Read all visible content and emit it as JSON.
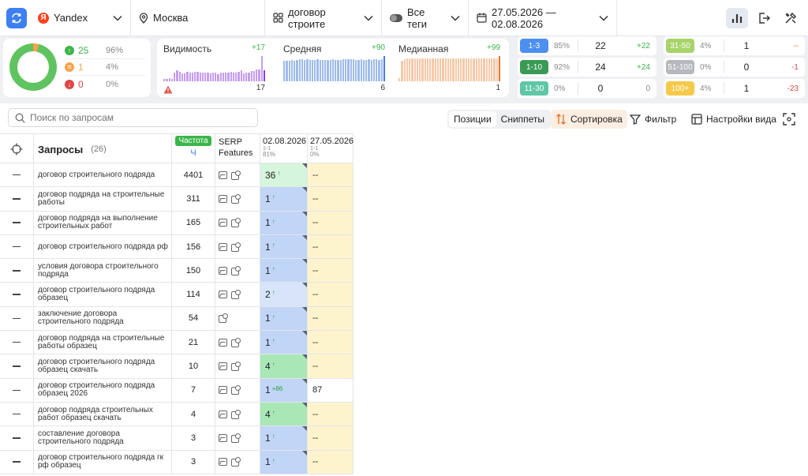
{
  "topbar": {
    "engine": "Yandex",
    "region": "Москва",
    "project": "договор строите",
    "tags": "Все теги",
    "date_range": "27.05.2026 — 02.08.2026"
  },
  "summary": {
    "up": {
      "count": "25",
      "pct": "96%"
    },
    "same": {
      "count": "1",
      "pct": "4%"
    },
    "down": {
      "count": "0",
      "pct": "0%"
    }
  },
  "metrics": [
    {
      "title": "Видимость",
      "delta": "+17",
      "value": "17",
      "color": "#c79df0",
      "bars": [
        5,
        6,
        7,
        5,
        22,
        28,
        24,
        20,
        20,
        24,
        22,
        22,
        24,
        24,
        22,
        22,
        22,
        22,
        20,
        22,
        22,
        18,
        22,
        22,
        22,
        22,
        24,
        22,
        22,
        24,
        28,
        20,
        22,
        22,
        26,
        26,
        30,
        30,
        62,
        28
      ]
    },
    {
      "title": "Средняя",
      "delta": "+90",
      "value": "6",
      "color": "#9fbcea",
      "bars": [
        80,
        82,
        80,
        84,
        82,
        84,
        86,
        86,
        84,
        86,
        84,
        84,
        84,
        86,
        84,
        84,
        84,
        84,
        84,
        86,
        84,
        84,
        84,
        86,
        86,
        88,
        86,
        86,
        84,
        84,
        86,
        84,
        84,
        86,
        84,
        86,
        86,
        84,
        88,
        100
      ]
    },
    {
      "title": "Медианная",
      "delta": "+99",
      "value": "1",
      "color": "#f7c8a8",
      "bars": [
        12,
        80,
        88,
        90,
        90,
        90,
        92,
        90,
        92,
        92,
        90,
        90,
        92,
        92,
        90,
        92,
        92,
        92,
        92,
        90,
        90,
        92,
        92,
        92,
        90,
        90,
        92,
        92,
        92,
        92,
        90,
        92,
        90,
        92,
        92,
        92,
        92,
        92,
        92,
        100
      ]
    }
  ],
  "ranges_left": [
    {
      "label": "1-3",
      "pct": "85%",
      "count": "22",
      "delta": "+22",
      "chip_color": "#4c8ff0",
      "delta_color": "#3bb54a"
    },
    {
      "label": "1-10",
      "pct": "92%",
      "count": "24",
      "delta": "+24",
      "chip_color": "#3a9a55",
      "delta_color": "#3bb54a"
    },
    {
      "label": "11-30",
      "pct": "0%",
      "count": "0",
      "delta": "0",
      "chip_color": "#5fc6a6",
      "delta_color": "#888888"
    }
  ],
  "ranges_right": [
    {
      "label": "31-50",
      "pct": "4%",
      "count": "1",
      "delta": "--",
      "chip_color": "#a6d46a",
      "delta_color": "#e8732e"
    },
    {
      "label": "51-100",
      "pct": "0%",
      "count": "0",
      "delta": "-1",
      "chip_color": "#b5b8bd",
      "delta_color": "#e04646"
    },
    {
      "label": "100+",
      "pct": "4%",
      "count": "1",
      "delta": "-23",
      "chip_color": "#f7c94a",
      "delta_color": "#e04646"
    }
  ],
  "toolbar": {
    "search_placeholder": "Поиск по запросам",
    "tab_positions": "Позиции",
    "tab_snippets": "Сниппеты",
    "sort": "Сортировка",
    "filter": "Фильтр",
    "view_settings": "Настройки вида"
  },
  "table": {
    "header_queries": "Запросы",
    "query_count": "(26)",
    "freq_badge": "Частота",
    "freq_sub": "Ч",
    "serp_line1": "SERP",
    "serp_line2": "Features",
    "date1": "02.08.2026",
    "date1_range": "1-1",
    "date1_pct": "81%",
    "date2": "27.05.2026",
    "date2_range": "1-1",
    "date2_pct": "0%",
    "rows": [
      {
        "query": "договор строительного подряда",
        "freq": "4401",
        "pos1": "36",
        "arrow": "↑",
        "pos2": "--",
        "c1": "#d6f5dd",
        "c2": "#fdf4cd",
        "img": true
      },
      {
        "query": "договор подряда на строительные работы",
        "freq": "311",
        "pos1": "1",
        "arrow": "↑",
        "pos2": "--",
        "c1": "#c1d5f7",
        "c2": "#fdf4cd",
        "img": true
      },
      {
        "query": "договор подряда на выполнение строительных работ",
        "freq": "165",
        "pos1": "1",
        "arrow": "↑",
        "pos2": "--",
        "c1": "#c1d5f7",
        "c2": "#fdf4cd",
        "img": true
      },
      {
        "query": "договор строительного подряда рф",
        "freq": "156",
        "pos1": "1",
        "arrow": "↑",
        "pos2": "--",
        "c1": "#c1d5f7",
        "c2": "#fdf4cd",
        "img": true
      },
      {
        "query": "условия договора строительного подряда",
        "freq": "150",
        "pos1": "1",
        "arrow": "↑",
        "pos2": "--",
        "c1": "#c1d5f7",
        "c2": "#fdf4cd",
        "img": true
      },
      {
        "query": "договор строительного подряда образец",
        "freq": "114",
        "pos1": "2",
        "arrow": "↑",
        "pos2": "--",
        "c1": "#d7e4fa",
        "c2": "#fdf4cd",
        "img": true
      },
      {
        "query": "заключение договора строительного подряда",
        "freq": "54",
        "pos1": "1",
        "arrow": "↑",
        "pos2": "--",
        "c1": "#c1d5f7",
        "c2": "#fdf4cd",
        "img": false
      },
      {
        "query": "договор подряда на строительные работы образец",
        "freq": "21",
        "pos1": "1",
        "arrow": "↑",
        "pos2": "--",
        "c1": "#c1d5f7",
        "c2": "#fdf4cd",
        "img": true
      },
      {
        "query": "договор строительного подряда образец скачать",
        "freq": "10",
        "pos1": "4",
        "arrow": "↑",
        "pos2": "--",
        "c1": "#a9e8b6",
        "c2": "#fdf4cd",
        "img": true
      },
      {
        "query": "договор строительного подряда образец 2026",
        "freq": "7",
        "pos1": "1",
        "arrow": "+86",
        "pos2": "87",
        "c1": "#c1d5f7",
        "c2": "#ffffff",
        "img": true
      },
      {
        "query": "договор подряда строительных работ образец скачать",
        "freq": "4",
        "pos1": "4",
        "arrow": "↑",
        "pos2": "--",
        "c1": "#a9e8b6",
        "c2": "#fdf4cd",
        "img": true
      },
      {
        "query": "составление договора строительного подряда",
        "freq": "3",
        "pos1": "1",
        "arrow": "↑",
        "pos2": "--",
        "c1": "#c1d5f7",
        "c2": "#fdf4cd",
        "img": true
      },
      {
        "query": "договор строительного подряда гк рф образец",
        "freq": "3",
        "pos1": "1",
        "arrow": "↑",
        "pos2": "--",
        "c1": "#c1d5f7",
        "c2": "#fdf4cd",
        "img": true
      }
    ]
  }
}
